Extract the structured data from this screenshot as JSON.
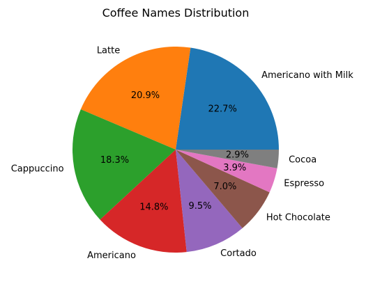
{
  "chart_data": {
    "type": "pie",
    "title": "Coffee Names Distribution",
    "slices": [
      {
        "label": "Americano with Milk",
        "percent": 22.7,
        "pct_label": "22.7%",
        "color": "#1f77b4"
      },
      {
        "label": "Latte",
        "percent": 20.9,
        "pct_label": "20.9%",
        "color": "#ff7f0e"
      },
      {
        "label": "Cappuccino",
        "percent": 18.3,
        "pct_label": "18.3%",
        "color": "#2ca02c"
      },
      {
        "label": "Americano",
        "percent": 14.8,
        "pct_label": "14.8%",
        "color": "#d62728"
      },
      {
        "label": "Cortado",
        "percent": 9.5,
        "pct_label": "9.5%",
        "color": "#9467bd"
      },
      {
        "label": "Hot Chocolate",
        "percent": 7.0,
        "pct_label": "7.0%",
        "color": "#8c564b"
      },
      {
        "label": "Espresso",
        "percent": 3.9,
        "pct_label": "3.9%",
        "color": "#e377c2"
      },
      {
        "label": "Cocoa",
        "percent": 2.9,
        "pct_label": "2.9%",
        "color": "#7f7f7f"
      }
    ],
    "start_angle_deg": 0,
    "direction": "counterclockwise"
  }
}
